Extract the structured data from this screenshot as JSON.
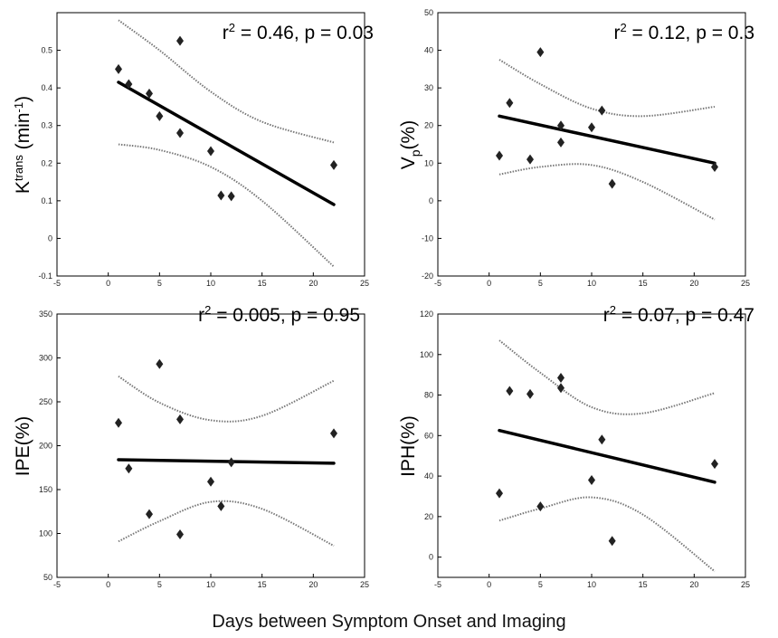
{
  "figure": {
    "xlabel": "Days between Symptom Onset and Imaging"
  },
  "chart_data": [
    {
      "type": "scatter",
      "ylabel": {
        "base": "K",
        "sup": "trans",
        "rest": " (min",
        "sup2": "-1",
        "end": ")"
      },
      "stats": {
        "r2_prefix": "r",
        "r2_exp": "2",
        "r2_text": " = 0.46, p = 0.03"
      },
      "xlim": [
        -5,
        25
      ],
      "xticks": [
        -5,
        0,
        5,
        10,
        15,
        20,
        25
      ],
      "ylim": [
        -0.1,
        0.6
      ],
      "yticks": [
        -0.1,
        0,
        0.1,
        0.2,
        0.3,
        0.4,
        0.5
      ],
      "points": [
        [
          1,
          0.45
        ],
        [
          2,
          0.41
        ],
        [
          4,
          0.385
        ],
        [
          5,
          0.325
        ],
        [
          7,
          0.525
        ],
        [
          7,
          0.28
        ],
        [
          10,
          0.232
        ],
        [
          11,
          0.114
        ],
        [
          12,
          0.112
        ],
        [
          22,
          0.195
        ]
      ],
      "fit": [
        [
          1,
          0.415
        ],
        [
          22,
          0.09
        ]
      ],
      "ci_upper": [
        [
          1,
          0.58
        ],
        [
          5,
          0.5
        ],
        [
          10,
          0.39
        ],
        [
          15,
          0.31
        ],
        [
          22,
          0.255
        ]
      ],
      "ci_lower": [
        [
          1,
          0.25
        ],
        [
          5,
          0.235
        ],
        [
          10,
          0.19
        ],
        [
          15,
          0.1
        ],
        [
          22,
          -0.075
        ]
      ]
    },
    {
      "type": "scatter",
      "ylabel": {
        "base": "V",
        "sub": "p",
        "rest": "(%)"
      },
      "stats": {
        "r2_prefix": "r",
        "r2_exp": "2",
        "r2_text": " = 0.12, p = 0.3"
      },
      "xlim": [
        -5,
        25
      ],
      "xticks": [
        -5,
        0,
        5,
        10,
        15,
        20,
        25
      ],
      "ylim": [
        -20,
        50
      ],
      "yticks": [
        -20,
        -10,
        0,
        10,
        20,
        30,
        40,
        50
      ],
      "points": [
        [
          1,
          12
        ],
        [
          2,
          26
        ],
        [
          4,
          11
        ],
        [
          5,
          39.5
        ],
        [
          7,
          20
        ],
        [
          7,
          15.5
        ],
        [
          10,
          19.5
        ],
        [
          11,
          24
        ],
        [
          12,
          4.5
        ],
        [
          22,
          9
        ]
      ],
      "fit": [
        [
          1,
          22.5
        ],
        [
          22,
          10
        ]
      ],
      "ci_upper": [
        [
          1,
          37.5
        ],
        [
          5,
          31
        ],
        [
          10,
          24.5
        ],
        [
          15,
          22.5
        ],
        [
          22,
          25
        ]
      ],
      "ci_lower": [
        [
          1,
          7
        ],
        [
          5,
          9
        ],
        [
          10,
          9.5
        ],
        [
          15,
          5
        ],
        [
          22,
          -5
        ]
      ]
    },
    {
      "type": "scatter",
      "ylabel": {
        "base": "IPE(%)"
      },
      "stats": {
        "r2_prefix": "r",
        "r2_exp": "2",
        "r2_text": " = 0.005, p = 0.95"
      },
      "xlim": [
        -5,
        25
      ],
      "xticks": [
        -5,
        0,
        5,
        10,
        15,
        20,
        25
      ],
      "ylim": [
        50,
        350
      ],
      "yticks": [
        50,
        100,
        150,
        200,
        250,
        300,
        350
      ],
      "points": [
        [
          1,
          226
        ],
        [
          2,
          174
        ],
        [
          4,
          122
        ],
        [
          5,
          293
        ],
        [
          7,
          230
        ],
        [
          7,
          99
        ],
        [
          10,
          159
        ],
        [
          11,
          131
        ],
        [
          12,
          181
        ],
        [
          22,
          214
        ]
      ],
      "fit": [
        [
          1,
          184
        ],
        [
          22,
          180
        ]
      ],
      "ci_upper": [
        [
          1,
          279
        ],
        [
          5,
          249
        ],
        [
          10,
          229
        ],
        [
          15,
          234
        ],
        [
          22,
          274
        ]
      ],
      "ci_lower": [
        [
          1,
          91
        ],
        [
          5,
          114
        ],
        [
          10,
          136
        ],
        [
          15,
          128
        ],
        [
          22,
          86
        ]
      ]
    },
    {
      "type": "scatter",
      "ylabel": {
        "base": "IPH(%)"
      },
      "stats": {
        "r2_prefix": "r",
        "r2_exp": "2",
        "r2_text": " = 0.07, p = 0.47"
      },
      "xlim": [
        -5,
        25
      ],
      "xticks": [
        -5,
        0,
        5,
        10,
        15,
        20,
        25
      ],
      "ylim": [
        -10,
        120
      ],
      "yticks": [
        0,
        20,
        40,
        60,
        80,
        100,
        120
      ],
      "points": [
        [
          1,
          31.5
        ],
        [
          2,
          82
        ],
        [
          4,
          80.5
        ],
        [
          5,
          25
        ],
        [
          7,
          88.5
        ],
        [
          7,
          83.5
        ],
        [
          10,
          38
        ],
        [
          11,
          58
        ],
        [
          12,
          8
        ],
        [
          22,
          46
        ]
      ],
      "fit": [
        [
          1,
          62.5
        ],
        [
          22,
          37
        ]
      ],
      "ci_upper": [
        [
          1,
          107
        ],
        [
          5,
          91
        ],
        [
          10,
          74
        ],
        [
          15,
          71
        ],
        [
          22,
          81
        ]
      ],
      "ci_lower": [
        [
          1,
          18
        ],
        [
          5,
          24
        ],
        [
          10,
          29.5
        ],
        [
          15,
          21
        ],
        [
          22,
          -7
        ]
      ]
    }
  ]
}
